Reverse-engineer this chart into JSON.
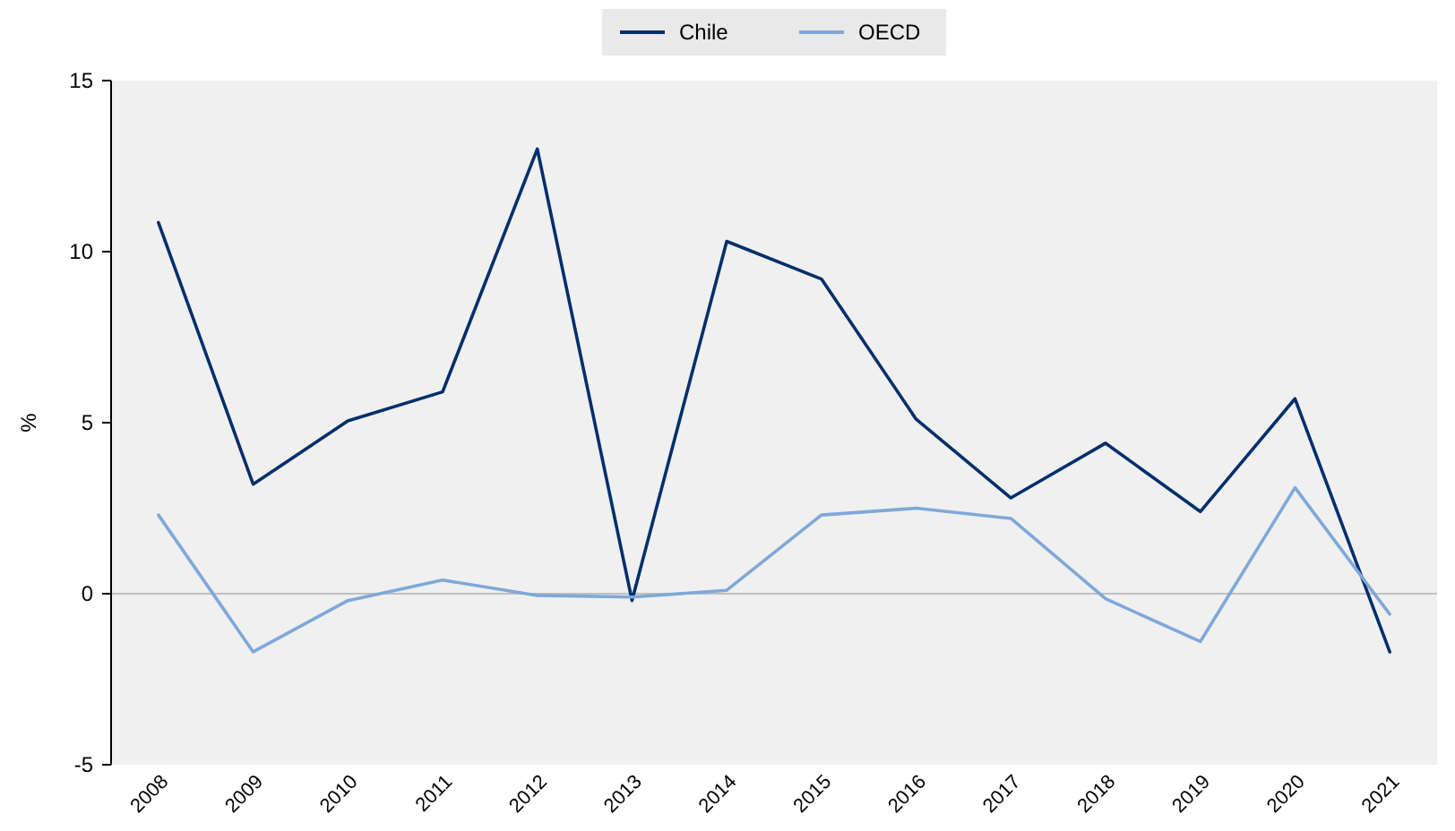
{
  "chart_data": {
    "type": "line",
    "ylabel": "%",
    "categories": [
      "2008",
      "2009",
      "2010",
      "2011",
      "2012",
      "2013",
      "2014",
      "2015",
      "2016",
      "2017",
      "2018",
      "2019",
      "2020",
      "2021"
    ],
    "series": [
      {
        "name": "Chile",
        "color": "#002f6c",
        "values": [
          10.85,
          3.2,
          5.05,
          5.9,
          13.0,
          -0.2,
          10.3,
          9.2,
          5.1,
          2.8,
          4.4,
          2.4,
          5.7,
          -1.7
        ]
      },
      {
        "name": "OECD",
        "color": "#7fa8d9",
        "values": [
          2.3,
          -1.7,
          -0.2,
          0.4,
          -0.05,
          -0.1,
          0.1,
          2.3,
          2.5,
          2.2,
          -0.15,
          -1.4,
          3.1,
          -0.6
        ]
      }
    ],
    "ylim": [
      -5,
      15
    ],
    "yticks": [
      -5,
      0,
      5,
      10,
      15
    ],
    "grid": false,
    "legend": "top",
    "marker": "none",
    "line_style": "solid",
    "ref_lines": [
      {
        "axis": "y",
        "value": 0,
        "color": "#bfbfbf"
      }
    ]
  }
}
